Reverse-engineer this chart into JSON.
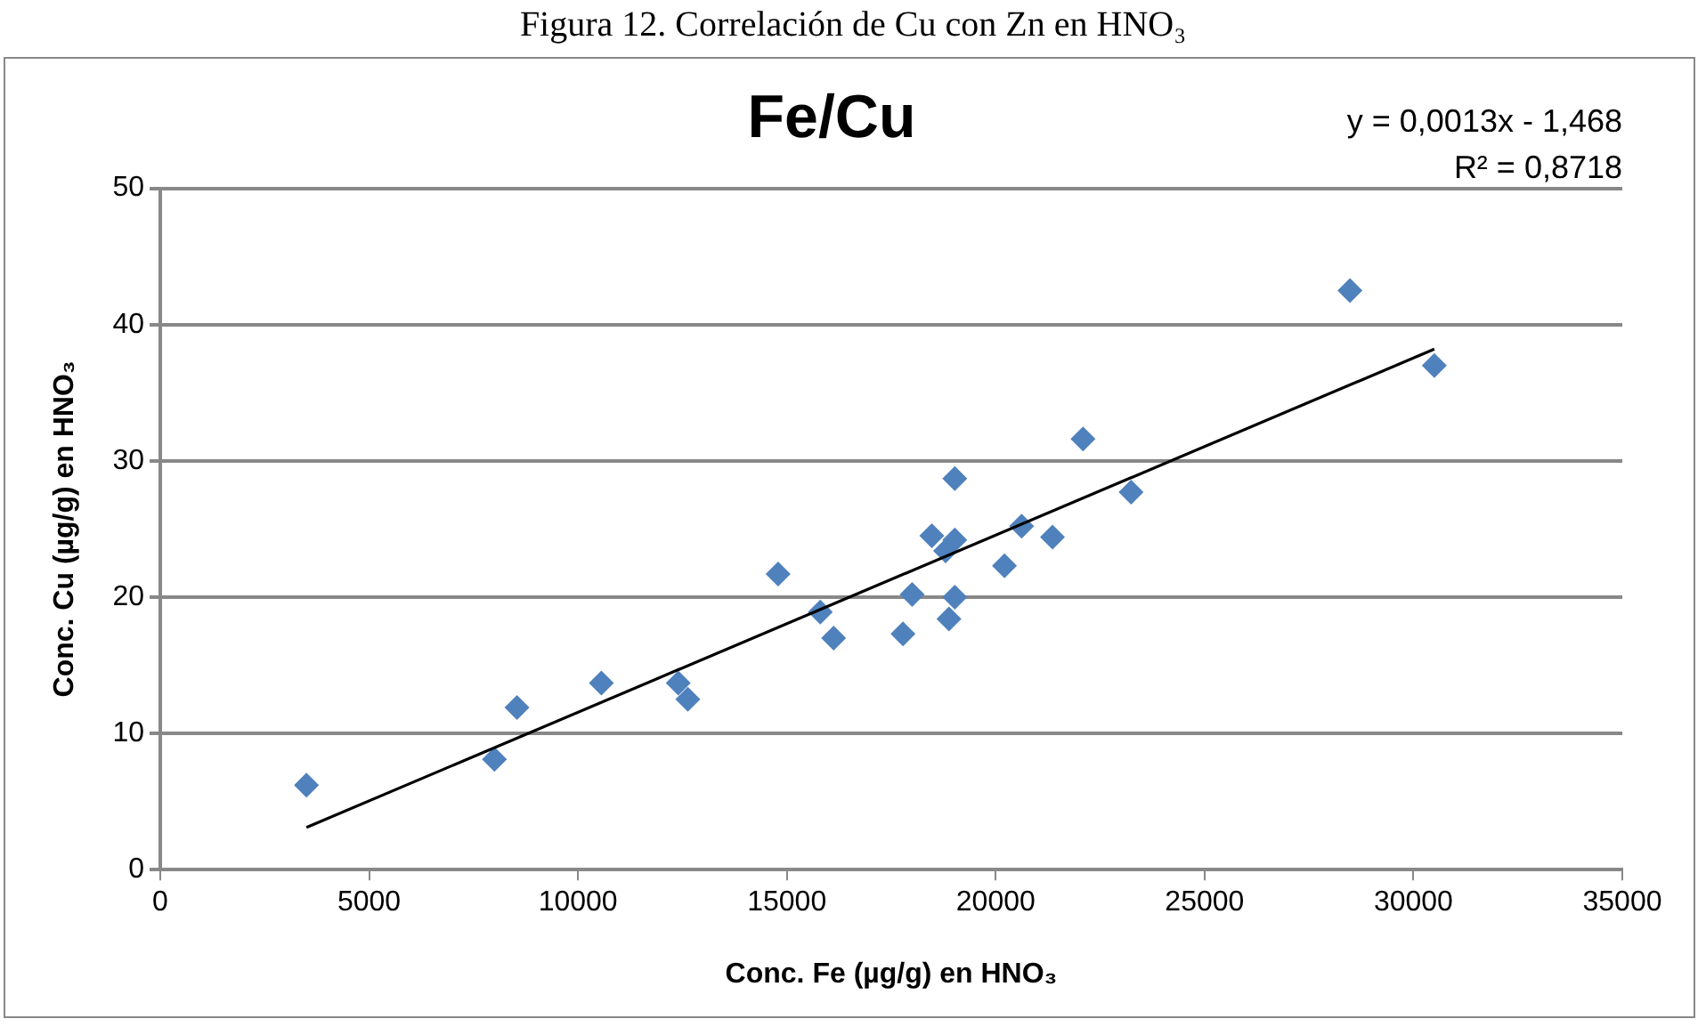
{
  "chart_data": {
    "type": "scatter",
    "title": "Fe/Cu",
    "xlabel": "Conc. Fe (µg/g) en HNO₃",
    "ylabel": "Conc. Cu (µg/g) en HNO₃",
    "annotations": [
      "Figura 12. Correlación de Cu con Zn en HNO₃",
      "y = 0,0013x - 1,468",
      "R² = 0,8718"
    ],
    "series": [
      {
        "type": "scatter",
        "color": "#4f81bd",
        "marker": "diamond",
        "x": [
          3500,
          8000,
          8540,
          10560,
          12400,
          12630,
          14790,
          15800,
          16120,
          17780,
          18000,
          18470,
          18800,
          19020,
          19020,
          18880,
          19020,
          20210,
          20620,
          21360,
          22090,
          23240,
          28480,
          30500
        ],
        "values": [
          6.2,
          8.1,
          11.9,
          13.7,
          13.7,
          12.5,
          21.7,
          18.9,
          17.0,
          17.3,
          20.2,
          24.5,
          23.4,
          24.2,
          28.7,
          18.4,
          20.0,
          22.3,
          25.2,
          24.4,
          31.6,
          27.7,
          42.5,
          37.0
        ]
      },
      {
        "type": "line",
        "color": "#000000",
        "marker": "none",
        "line_style": "solid",
        "x": [
          3500,
          30500
        ],
        "values": [
          3.1,
          38.2
        ]
      }
    ],
    "xlim": [
      0,
      35000
    ],
    "xticks": [
      0,
      5000,
      10000,
      15000,
      20000,
      25000,
      30000,
      35000
    ],
    "ylim": [
      0,
      50
    ],
    "yticks": [
      0,
      10,
      20,
      30,
      40,
      50
    ],
    "grid": "y",
    "legend": false
  }
}
